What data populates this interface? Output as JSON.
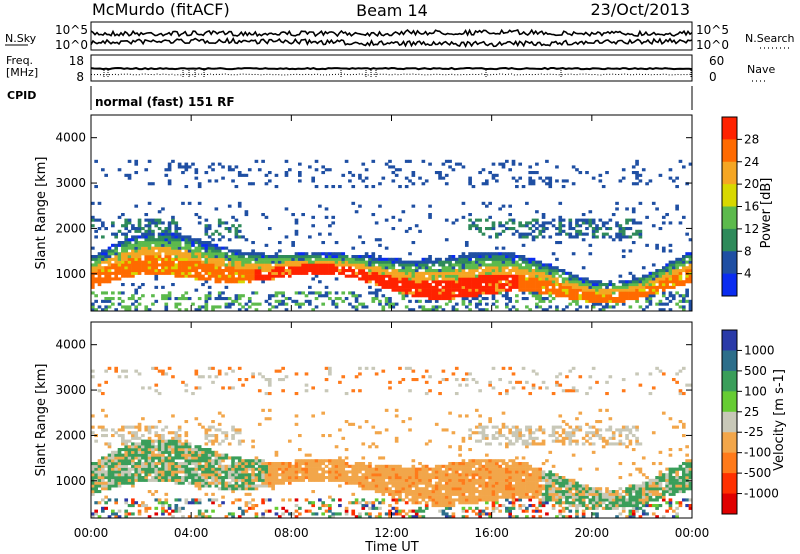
{
  "header": {
    "radar": "McMurdo (fitACF)",
    "beam": "Beam 14",
    "date": "23/Oct/2013"
  },
  "noise_panel": {
    "left_label": "N.Sky",
    "right_label": "N.Search",
    "left_ticks": [
      "10^5",
      "10^0"
    ],
    "right_ticks": [
      "10^5",
      "10^0"
    ]
  },
  "freq_panel": {
    "left_label_1": "Freq.",
    "left_label_2": "[MHz]",
    "right_label": "Nave",
    "left_ticks": [
      "18",
      "8"
    ],
    "right_ticks": [
      "60",
      "0"
    ]
  },
  "cpid_panel": {
    "label": "CPID",
    "mode": "normal (fast) 151 RF"
  },
  "chart_data": [
    {
      "type": "heatmap",
      "title": "",
      "ylabel": "Slant Range [km]",
      "xlabel": "",
      "yticks": [
        "1000",
        "2000",
        "3000",
        "4000"
      ],
      "ylim": [
        180,
        4500
      ],
      "colorbar_label": "Power [dB]",
      "colorbar_ticks": [
        "4",
        "8",
        "12",
        "16",
        "20",
        "24",
        "28"
      ],
      "colorbar_colors": [
        "#0a2cf0",
        "#1f4fa3",
        "#2e8a5a",
        "#5cba4c",
        "#d8d800",
        "#f5a623",
        "#ff6a00",
        "#ff2200"
      ],
      "values_summary": "echo power versus time and slant range"
    },
    {
      "type": "heatmap",
      "title": "",
      "ylabel": "Slant Range [km]",
      "xlabel": "Time UT",
      "yticks": [
        "1000",
        "2000",
        "3000",
        "4000"
      ],
      "ylim": [
        180,
        4500
      ],
      "xticks": [
        "00:00",
        "04:00",
        "08:00",
        "12:00",
        "16:00",
        "20:00",
        "00:00"
      ],
      "colorbar_label": "Velocity [m s-1]",
      "colorbar_ticks": [
        "1000",
        "500",
        "100",
        "25",
        "-25",
        "-100",
        "-500",
        "-1000"
      ],
      "colorbar_colors": [
        "#2a3aa8",
        "#2c6e8a",
        "#3a9e5a",
        "#66cc33",
        "#c8c8b8",
        "#f2a64a",
        "#ff7a1a",
        "#ff3000",
        "#e00000"
      ],
      "values_summary": "line-of-sight doppler velocity versus time and slant range"
    }
  ]
}
